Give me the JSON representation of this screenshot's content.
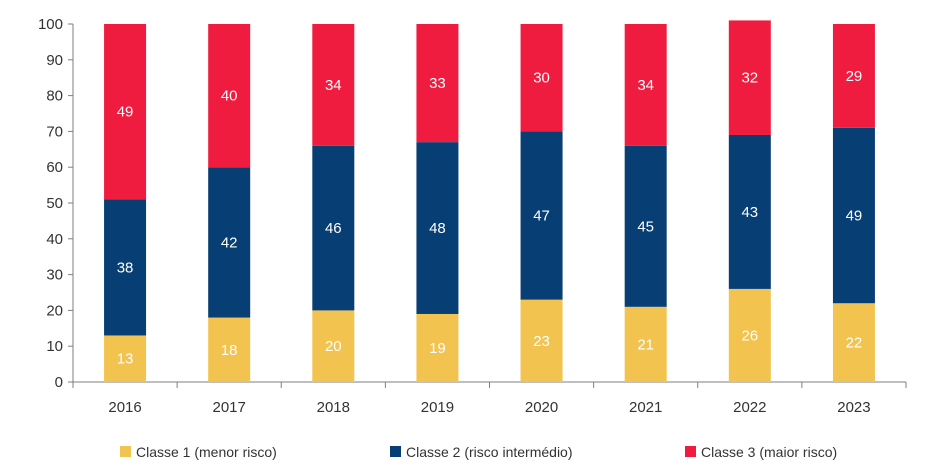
{
  "chart_data": {
    "type": "bar",
    "stacked": true,
    "categories": [
      "2016",
      "2017",
      "2018",
      "2019",
      "2020",
      "2021",
      "2022",
      "2023"
    ],
    "series": [
      {
        "name": "Classe 1 (menor risco)",
        "color": "#f2c34e",
        "values": [
          13,
          18,
          20,
          19,
          23,
          21,
          26,
          22
        ]
      },
      {
        "name": "Classe 2 (risco intermédio)",
        "color": "#073e73",
        "values": [
          38,
          42,
          46,
          48,
          47,
          45,
          43,
          49
        ]
      },
      {
        "name": "Classe 3 (maior risco)",
        "color": "#ef1c3f",
        "values": [
          49,
          40,
          34,
          33,
          30,
          34,
          32,
          29
        ]
      }
    ],
    "title": "",
    "xlabel": "",
    "ylabel": "",
    "ylim": [
      0,
      100
    ],
    "yticks": [
      0,
      10,
      20,
      30,
      40,
      50,
      60,
      70,
      80,
      90,
      100
    ],
    "grid": false,
    "legend_position": "bottom"
  }
}
